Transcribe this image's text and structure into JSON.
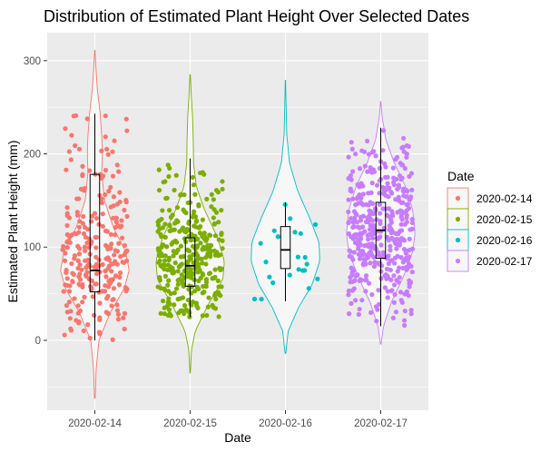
{
  "chart_data": {
    "type": "violin",
    "title": "Distribution of Estimated Plant Height Over Selected Dates",
    "xlabel": "Date",
    "ylabel": "Estimated Plant Height (mm)",
    "categories": [
      "2020-02-14",
      "2020-02-15",
      "2020-02-16",
      "2020-02-17"
    ],
    "ylim": [
      -75,
      330
    ],
    "yticks": [
      0,
      100,
      200,
      300
    ],
    "grid": true,
    "legend": {
      "title": "Date",
      "position": "right",
      "entries": [
        "2020-02-14",
        "2020-02-15",
        "2020-02-16",
        "2020-02-17"
      ]
    },
    "colors": [
      "#F8766D",
      "#7CAE00",
      "#00BFC4",
      "#C77CFF"
    ],
    "series": [
      {
        "name": "2020-02-14",
        "box": {
          "lower_whisker": 0,
          "q1": 52,
          "median": 75,
          "q3": 178,
          "upper_whisker": 243
        },
        "violin_extent": [
          -62,
          311
        ],
        "density_profile": [
          [
            -62,
            0.01
          ],
          [
            -30,
            0.04
          ],
          [
            0,
            0.12
          ],
          [
            30,
            0.45
          ],
          [
            55,
            0.85
          ],
          [
            75,
            1.0
          ],
          [
            95,
            0.9
          ],
          [
            120,
            0.55
          ],
          [
            150,
            0.28
          ],
          [
            180,
            0.2
          ],
          [
            200,
            0.22
          ],
          [
            220,
            0.2
          ],
          [
            245,
            0.15
          ],
          [
            270,
            0.07
          ],
          [
            300,
            0.02
          ],
          [
            311,
            0.005
          ]
        ],
        "n_points": 260
      },
      {
        "name": "2020-02-15",
        "box": {
          "lower_whisker": 25,
          "q1": 58,
          "median": 80,
          "q3": 110,
          "upper_whisker": 195
        },
        "violin_extent": [
          -35,
          285
        ],
        "density_profile": [
          [
            -35,
            0.005
          ],
          [
            -10,
            0.04
          ],
          [
            10,
            0.15
          ],
          [
            40,
            0.55
          ],
          [
            65,
            0.95
          ],
          [
            85,
            1.0
          ],
          [
            110,
            0.8
          ],
          [
            140,
            0.42
          ],
          [
            165,
            0.18
          ],
          [
            190,
            0.1
          ],
          [
            215,
            0.09
          ],
          [
            240,
            0.07
          ],
          [
            265,
            0.03
          ],
          [
            285,
            0.005
          ]
        ],
        "n_points": 330
      },
      {
        "name": "2020-02-16",
        "box": {
          "lower_whisker": 42,
          "q1": 77,
          "median": 97,
          "q3": 122,
          "upper_whisker": 148
        },
        "violin_extent": [
          -14,
          279
        ],
        "density_profile": [
          [
            -14,
            0.01
          ],
          [
            10,
            0.08
          ],
          [
            35,
            0.38
          ],
          [
            60,
            0.78
          ],
          [
            85,
            1.0
          ],
          [
            105,
            0.98
          ],
          [
            130,
            0.72
          ],
          [
            160,
            0.36
          ],
          [
            190,
            0.12
          ],
          [
            220,
            0.04
          ],
          [
            250,
            0.02
          ],
          [
            279,
            0.005
          ]
        ],
        "n_points": 22
      },
      {
        "name": "2020-02-17",
        "box": {
          "lower_whisker": 15,
          "q1": 88,
          "median": 118,
          "q3": 148,
          "upper_whisker": 228
        },
        "violin_extent": [
          -4,
          256
        ],
        "density_profile": [
          [
            -4,
            0.01
          ],
          [
            15,
            0.08
          ],
          [
            40,
            0.3
          ],
          [
            70,
            0.68
          ],
          [
            95,
            0.93
          ],
          [
            115,
            1.0
          ],
          [
            140,
            0.93
          ],
          [
            165,
            0.72
          ],
          [
            190,
            0.4
          ],
          [
            215,
            0.15
          ],
          [
            240,
            0.04
          ],
          [
            256,
            0.005
          ]
        ],
        "n_points": 420
      }
    ]
  }
}
